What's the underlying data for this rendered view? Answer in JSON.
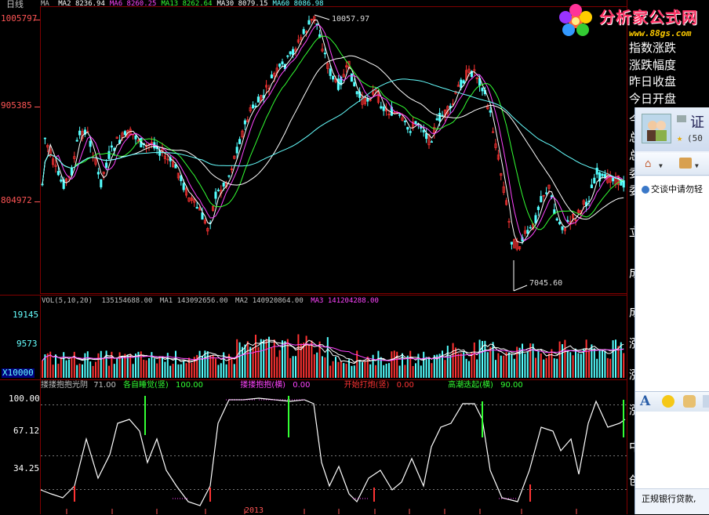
{
  "header": {
    "period_label": "日线",
    "ma_label": "MA",
    "ma_values": [
      {
        "name": "MA2",
        "value": "8236.94",
        "color": "#ffffff"
      },
      {
        "name": "MA6",
        "value": "8260.25",
        "color": "#ff44ff"
      },
      {
        "name": "MA13",
        "value": "8262.64",
        "color": "#33ff33"
      },
      {
        "name": "MA30",
        "value": "8079.15",
        "color": "#ffffff"
      },
      {
        "name": "MA60",
        "value": "8086.98",
        "color": "#66ffff"
      }
    ]
  },
  "price_axis": {
    "labels": [
      "1005797",
      "905385",
      "804972"
    ]
  },
  "price_annotations": {
    "high": "10057.97",
    "low": "7045.60"
  },
  "volume": {
    "header": "VOL(5,10,20)",
    "header_value": "135154688.00",
    "ma_values": [
      {
        "name": "MA1",
        "value": "143092656.00",
        "color": "#ffffff"
      },
      {
        "name": "MA2",
        "value": "140920864.00",
        "color": "#ffffff"
      },
      {
        "name": "MA3",
        "value": "141204288.00",
        "color": "#ff44ff"
      }
    ],
    "axis_labels": [
      "19145",
      "9573"
    ],
    "unit_label": "X10000"
  },
  "indicator": {
    "name": "搂搂抱抱光阴",
    "name_value": "71.00",
    "items": [
      {
        "label": "各自睡觉(竖)",
        "value": "100.00",
        "color": "#33ff33"
      },
      {
        "label": "搂搂抱抱(横)",
        "value": "0.00",
        "color": "#ff44ff"
      },
      {
        "label": "开始打炮(竖)",
        "value": "0.00",
        "color": "#ff3333"
      },
      {
        "label": "高潮迭起(横)",
        "value": "90.00",
        "color": "#33ff33"
      }
    ],
    "axis_labels": [
      "100.00",
      "67.12",
      "34.25"
    ]
  },
  "x_axis": {
    "year_label": "2013"
  },
  "right_panel": {
    "items": [
      "指数涨跌",
      "涨跌幅度",
      "昨日收盘",
      "今日开盘"
    ],
    "partial_chars": [
      "今",
      "总",
      "总",
      "委",
      "委",
      "立",
      "成",
      "成",
      "涨",
      "涨",
      "涨",
      "中",
      "创"
    ]
  },
  "logo": {
    "text": "分析家公式网",
    "url_text": "www.88gs.com"
  },
  "qq": {
    "contact_prefix": "证",
    "contact_sub": "(50",
    "notice": "交谈中请勿轻",
    "footer": "正规银行贷款,"
  },
  "colors": {
    "up": "#ff3333",
    "down": "#54ffff",
    "grid": "#800000",
    "axis_red": "#ff5555"
  }
}
